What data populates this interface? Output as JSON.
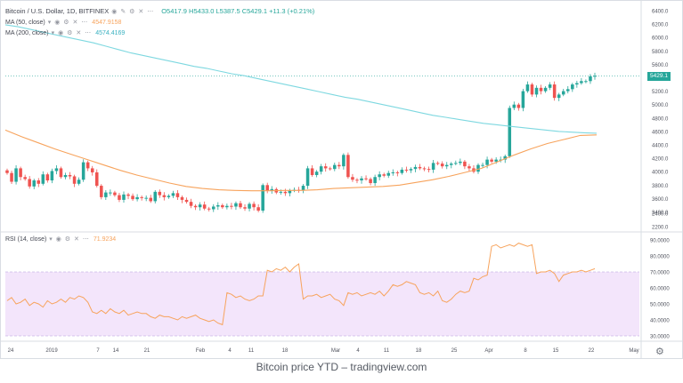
{
  "title_row": {
    "symbol": "Bitcoin / U.S. Dollar, 1D, BITFINEX",
    "ohlc": "O5417.9  H5433.0  L5387.5  C5429.1  +11.3 (+0.21%)"
  },
  "indicators": {
    "ma50": {
      "label": "MA (50, close)",
      "value": "4547.9158"
    },
    "ma200": {
      "label": "MA (200, close)",
      "value": "4574.4169"
    },
    "rsi": {
      "label": "RSI (14, close)",
      "value": "71.9234"
    }
  },
  "last_price_tag": "5429.1",
  "caption": "Bitcoin price YTD – tradingview.com",
  "colors": {
    "up": "#26a69a",
    "down": "#ef5350",
    "ma50": "#f7a35c",
    "ma200": "#7ed8e0",
    "rsi": "#f7a35c",
    "rsi_band": "#f3e5fb"
  },
  "chart_data": [
    {
      "type": "candlestick",
      "title": "Bitcoin / U.S. Dollar, 1D, BITFINEX",
      "ylim": [
        2200,
        6500
      ],
      "y_ticks": [
        "6400.0",
        "6200.0",
        "6000.0",
        "5800.0",
        "5600.0",
        "5400.0",
        "5200.0",
        "5000.0",
        "4800.0",
        "4600.0",
        "4400.0",
        "4200.0",
        "4000.0",
        "3800.0",
        "3600.0",
        "3400.0",
        "2400.0",
        "2200.0"
      ],
      "x_ticks": [
        "24",
        "2019",
        "7",
        "14",
        "21",
        "Feb",
        "4",
        "11",
        "18",
        "Mar",
        "4",
        "11",
        "18",
        "25",
        "Apr",
        "8",
        "15",
        "22",
        "May"
      ],
      "closes": [
        3980,
        3850,
        4050,
        3920,
        3890,
        3780,
        3870,
        3820,
        3960,
        3870,
        4010,
        4050,
        3920,
        3950,
        3930,
        3820,
        3880,
        4140,
        4050,
        3990,
        3790,
        3620,
        3690,
        3690,
        3650,
        3580,
        3660,
        3640,
        3590,
        3620,
        3610,
        3610,
        3560,
        3700,
        3650,
        3620,
        3640,
        3680,
        3620,
        3580,
        3550,
        3490,
        3470,
        3510,
        3450,
        3440,
        3480,
        3500,
        3470,
        3490,
        3480,
        3530,
        3470,
        3450,
        3520,
        3470,
        3420,
        3800,
        3720,
        3740,
        3690,
        3700,
        3680,
        3720,
        3730,
        3720,
        3790,
        4050,
        3950,
        4000,
        4080,
        4050,
        4040,
        4100,
        4080,
        4250,
        3920,
        3880,
        3870,
        3900,
        3890,
        3830,
        3920,
        3960,
        3940,
        3980,
        3990,
        3980,
        4030,
        4020,
        4040,
        4070,
        4050,
        4040,
        4030,
        4130,
        4120,
        4080,
        4100,
        4120,
        4130,
        4150,
        4080,
        4050,
        4000,
        4100,
        4100,
        4180,
        4150,
        4180,
        4180,
        4230,
        4950,
        5000,
        4950,
        5200,
        5300,
        5150,
        5250,
        5200,
        5250,
        5300,
        5100,
        5150,
        5200,
        5230,
        5300,
        5320,
        5350,
        5350,
        5420,
        5429
      ],
      "series": [
        {
          "name": "MA (50, close)",
          "values": [
            4620,
            4520,
            4430,
            4340,
            4260,
            4180,
            4100,
            4020,
            3950,
            3890,
            3830,
            3780,
            3750,
            3730,
            3720,
            3715,
            3715,
            3720,
            3720,
            3730,
            3750,
            3760,
            3770,
            3780,
            3800,
            3840,
            3880,
            3930,
            3990,
            4050,
            4150,
            4250,
            4340,
            4420,
            4480,
            4540,
            4548
          ]
        },
        {
          "name": "MA (200, close)",
          "values": [
            6190,
            6160,
            6120,
            6080,
            6040,
            6000,
            5960,
            5920,
            5870,
            5820,
            5770,
            5730,
            5690,
            5650,
            5610,
            5570,
            5540,
            5500,
            5460,
            5430,
            5390,
            5350,
            5310,
            5270,
            5230,
            5190,
            5150,
            5110,
            5080,
            5040,
            5000,
            4960,
            4920,
            4880,
            4840,
            4810,
            4780,
            4750,
            4720,
            4700,
            4680,
            4660,
            4640,
            4620,
            4600,
            4590,
            4580,
            4574
          ]
        }
      ]
    },
    {
      "type": "line",
      "title": "RSI (14, close)",
      "ylim": [
        30,
        90
      ],
      "y_ticks": [
        "90.0000",
        "80.0000",
        "70.0000",
        "60.0000",
        "50.0000",
        "40.0000",
        "30.0000"
      ],
      "band": [
        30,
        70
      ],
      "values": [
        52,
        54,
        50,
        51,
        53,
        49,
        51,
        50,
        48,
        52,
        50,
        51,
        53,
        51,
        54,
        53,
        55,
        54,
        51,
        45,
        44,
        46,
        44,
        47,
        45,
        44,
        46,
        43,
        44,
        45,
        44,
        44,
        42,
        41,
        43,
        42,
        42,
        41,
        40,
        42,
        41,
        42,
        43,
        41,
        40,
        39,
        40,
        38,
        37,
        57,
        56,
        54,
        55,
        53,
        52,
        53,
        55,
        55,
        71,
        70,
        72,
        71,
        73,
        70,
        73,
        75,
        53,
        55,
        55,
        56,
        54,
        55,
        56,
        53,
        52,
        49,
        57,
        56,
        57,
        55,
        56,
        57,
        56,
        58,
        55,
        58,
        62,
        61,
        62,
        64,
        63,
        62,
        57,
        56,
        57,
        55,
        58,
        52,
        51,
        53,
        56,
        58,
        57,
        58,
        66,
        65,
        67,
        68,
        86,
        87,
        85,
        86,
        87,
        86,
        88,
        87,
        86,
        87,
        69,
        70,
        70,
        71,
        69,
        64,
        68,
        69,
        70,
        70,
        71,
        70,
        71,
        72
      ]
    }
  ]
}
